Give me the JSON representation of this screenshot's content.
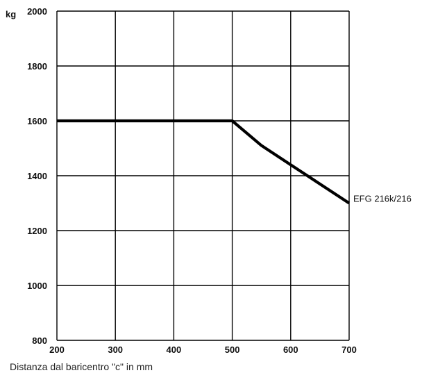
{
  "chart_data": {
    "type": "line",
    "title": "",
    "ylabel": "kg",
    "xlabel": "Distanza dal baricentro \"c\" in mm",
    "xlim": [
      200,
      700
    ],
    "ylim": [
      800,
      2000
    ],
    "x_ticks": [
      200,
      300,
      400,
      500,
      600,
      700
    ],
    "y_ticks": [
      800,
      1000,
      1200,
      1400,
      1600,
      1800,
      2000
    ],
    "grid": true,
    "series": [
      {
        "name": "EFG 216k/216",
        "x": [
          200,
          500,
          550,
          600,
          650,
          700
        ],
        "y": [
          1600,
          1600,
          1510,
          1440,
          1370,
          1300
        ]
      }
    ]
  },
  "colors": {
    "line": "#000000",
    "grid": "#000000",
    "text": "#111111"
  }
}
